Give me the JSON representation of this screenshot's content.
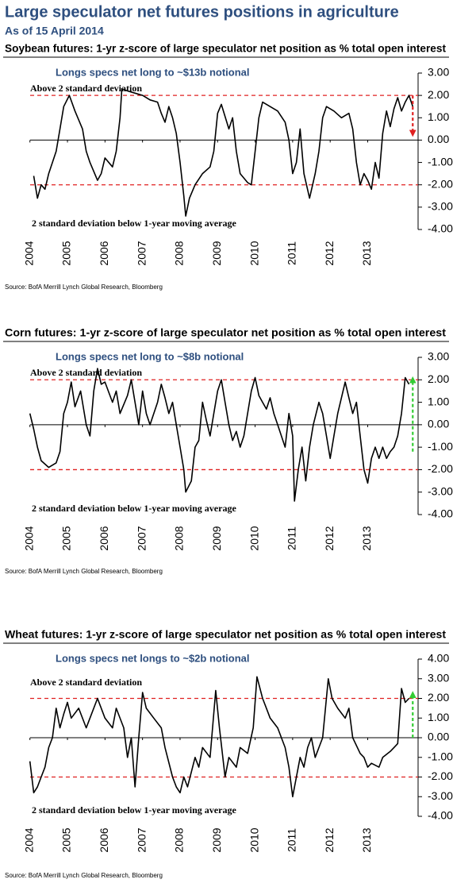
{
  "title": "Large speculator net futures positions in agriculture",
  "subtitle": "As of 15 April 2014",
  "chart_data": [
    {
      "type": "line",
      "title": "Soybean futures: 1-yr z-score of large speculator net position as % total open interest",
      "color": "#000000",
      "x": [
        2004.1,
        2004.2,
        2004.3,
        2004.4,
        2004.5,
        2004.7,
        2004.8,
        2004.9,
        2005.05,
        2005.2,
        2005.4,
        2005.5,
        2005.6,
        2005.8,
        2005.9,
        2006.0,
        2006.2,
        2006.3,
        2006.4,
        2006.45,
        2006.6,
        2006.8,
        2007.0,
        2007.2,
        2007.4,
        2007.5,
        2007.6,
        2007.7,
        2007.8,
        2007.9,
        2008.0,
        2008.1,
        2008.15,
        2008.25,
        2008.4,
        2008.6,
        2008.8,
        2008.9,
        2009.0,
        2009.1,
        2009.3,
        2009.4,
        2009.5,
        2009.6,
        2009.8,
        2009.9,
        2010.0,
        2010.1,
        2010.2,
        2010.4,
        2010.6,
        2010.8,
        2010.9,
        2011.0,
        2011.1,
        2011.2,
        2011.3,
        2011.45,
        2011.6,
        2011.7,
        2011.8,
        2011.9,
        2012.1,
        2012.3,
        2012.5,
        2012.6,
        2012.7,
        2012.8,
        2012.9,
        2013.0,
        2013.1,
        2013.2,
        2013.3,
        2013.4,
        2013.5,
        2013.6,
        2013.7,
        2013.8,
        2013.9,
        2014.0,
        2014.1,
        2014.2
      ],
      "values": [
        -1.6,
        -2.6,
        -2.0,
        -2.2,
        -1.5,
        -0.5,
        0.5,
        1.5,
        2.0,
        1.3,
        0.5,
        -0.5,
        -1.0,
        -1.8,
        -1.5,
        -0.8,
        -1.2,
        -0.5,
        1.0,
        2.3,
        2.2,
        2.1,
        2.0,
        1.8,
        1.7,
        1.2,
        0.8,
        1.5,
        1.0,
        0.3,
        -1.0,
        -2.5,
        -3.4,
        -2.6,
        -2.0,
        -1.5,
        -1.2,
        -0.5,
        1.2,
        1.6,
        0.5,
        1.0,
        -0.5,
        -1.5,
        -1.9,
        -2.0,
        -0.5,
        1.0,
        1.7,
        1.5,
        1.3,
        0.8,
        0.0,
        -1.5,
        -1.0,
        0.5,
        -1.5,
        -2.6,
        -1.5,
        -0.5,
        1.0,
        1.5,
        1.3,
        1.0,
        1.2,
        0.5,
        -1.0,
        -2.0,
        -1.5,
        -1.8,
        -2.2,
        -1.0,
        -1.7,
        0.3,
        1.3,
        0.6,
        1.4,
        1.9,
        1.3,
        1.7,
        2.0,
        1.5
      ],
      "xlim": [
        2003.9,
        2014.3
      ],
      "xticks": [
        2004,
        2005,
        2006,
        2007,
        2008,
        2009,
        2010,
        2011,
        2012,
        2013
      ],
      "ylim": [
        -4,
        3
      ],
      "yticks": [
        {
          "value": 3,
          "label": "3.00"
        },
        {
          "value": 2,
          "label": "2.00"
        },
        {
          "value": 1,
          "label": "1.00"
        },
        {
          "value": 0,
          "label": "0.00"
        },
        {
          "value": -1,
          "label": "-1.00"
        },
        {
          "value": -2,
          "label": "-2.00"
        },
        {
          "value": -3,
          "label": "-3.00"
        },
        {
          "value": -4,
          "label": "-4.00"
        }
      ],
      "reference_lines": [
        2,
        -2
      ],
      "reference_color": "#e02020",
      "arrow": {
        "x": 2014.2,
        "from": 2,
        "to": 0.3,
        "color": "#e02020"
      },
      "annotations": [
        "Longs specs net long to ~$13b notional",
        "Above 2 standard deviation",
        "2 standard deviation below 1-year moving average"
      ],
      "source": "Source: BofA Merrill Lynch Global Research, Bloomberg"
    },
    {
      "type": "line",
      "title": "Corn futures: 1-yr z-score of large speculator net position as % total open interest",
      "color": "#000000",
      "x": [
        2004.0,
        2004.1,
        2004.2,
        2004.3,
        2004.5,
        2004.7,
        2004.8,
        2004.9,
        2005.0,
        2005.1,
        2005.2,
        2005.35,
        2005.5,
        2005.6,
        2005.7,
        2005.8,
        2005.9,
        2006.0,
        2006.2,
        2006.3,
        2006.4,
        2006.6,
        2006.7,
        2006.8,
        2006.9,
        2007.0,
        2007.1,
        2007.2,
        2007.4,
        2007.5,
        2007.6,
        2007.7,
        2007.8,
        2007.9,
        2008.0,
        2008.1,
        2008.15,
        2008.3,
        2008.4,
        2008.5,
        2008.6,
        2008.7,
        2008.8,
        2008.9,
        2009.0,
        2009.1,
        2009.2,
        2009.3,
        2009.4,
        2009.5,
        2009.6,
        2009.7,
        2009.8,
        2009.9,
        2010.0,
        2010.1,
        2010.2,
        2010.3,
        2010.4,
        2010.5,
        2010.6,
        2010.7,
        2010.8,
        2010.9,
        2011.0,
        2011.05,
        2011.15,
        2011.25,
        2011.35,
        2011.45,
        2011.55,
        2011.7,
        2011.8,
        2011.9,
        2012.0,
        2012.1,
        2012.2,
        2012.4,
        2012.5,
        2012.6,
        2012.7,
        2012.8,
        2012.9,
        2013.0,
        2013.1,
        2013.2,
        2013.3,
        2013.4,
        2013.5,
        2013.6,
        2013.7,
        2013.8,
        2013.9,
        2014.0,
        2014.1
      ],
      "values": [
        0.5,
        -0.2,
        -1.0,
        -1.6,
        -1.9,
        -1.7,
        -1.2,
        0.5,
        1.0,
        1.9,
        0.8,
        1.5,
        0.0,
        -0.5,
        1.5,
        2.5,
        1.8,
        1.9,
        1.0,
        1.5,
        0.5,
        1.3,
        2.0,
        1.0,
        0.0,
        1.5,
        0.5,
        0.0,
        1.0,
        1.8,
        1.2,
        0.5,
        1.0,
        0.0,
        -1.0,
        -2.0,
        -3.0,
        -2.5,
        -1.0,
        -0.7,
        1.0,
        0.2,
        -0.5,
        0.5,
        1.5,
        2.0,
        1.0,
        0.0,
        -0.7,
        -0.3,
        -1.0,
        -0.5,
        0.5,
        1.5,
        2.1,
        1.3,
        1.0,
        0.7,
        1.2,
        0.5,
        0.0,
        -0.5,
        -1.0,
        0.5,
        -0.5,
        -3.4,
        -2.0,
        -1.0,
        -2.5,
        -1.0,
        0.0,
        1.0,
        0.5,
        -0.5,
        -1.5,
        -0.5,
        0.5,
        1.9,
        1.2,
        0.5,
        1.0,
        -0.5,
        -2.0,
        -2.6,
        -1.5,
        -1.0,
        -1.5,
        -1.0,
        -1.5,
        -1.2,
        -1.0,
        -0.5,
        0.5,
        2.1,
        1.8
      ],
      "xlim": [
        2003.9,
        2014.3
      ],
      "xticks": [
        2004,
        2005,
        2006,
        2007,
        2008,
        2009,
        2010,
        2011,
        2012,
        2013
      ],
      "ylim": [
        -4,
        3
      ],
      "yticks": [
        {
          "value": 3,
          "label": "3.00"
        },
        {
          "value": 2,
          "label": "2.00"
        },
        {
          "value": 1,
          "label": "1.00"
        },
        {
          "value": 0,
          "label": "0.00"
        },
        {
          "value": -1,
          "label": "-1.00"
        },
        {
          "value": -2,
          "label": "-2.00"
        },
        {
          "value": -3,
          "label": "-3.00"
        },
        {
          "value": -4,
          "label": "-4.00"
        }
      ],
      "reference_lines": [
        2,
        -2
      ],
      "reference_color": "#e02020",
      "arrow": {
        "x": 2014.2,
        "from": -1.2,
        "to": 2,
        "color": "#33cc33"
      },
      "annotations": [
        "Longs specs net long to ~$8b notional",
        "Above 2 standard deviation",
        "2 standard deviation below 1-year moving average"
      ],
      "source": "Source: BofA Merrill Lynch Global Research, Bloomberg"
    },
    {
      "type": "line",
      "title": "Wheat futures: 1-yr z-score of large speculator net position as % total open interest",
      "color": "#000000",
      "x": [
        2004.0,
        2004.1,
        2004.2,
        2004.3,
        2004.4,
        2004.5,
        2004.6,
        2004.7,
        2004.8,
        2004.9,
        2005.0,
        2005.1,
        2005.3,
        2005.5,
        2005.6,
        2005.8,
        2005.9,
        2006.0,
        2006.2,
        2006.3,
        2006.5,
        2006.6,
        2006.7,
        2006.8,
        2006.9,
        2007.0,
        2007.1,
        2007.3,
        2007.5,
        2007.6,
        2007.8,
        2007.9,
        2008.0,
        2008.1,
        2008.2,
        2008.4,
        2008.5,
        2008.6,
        2008.8,
        2008.95,
        2009.05,
        2009.2,
        2009.3,
        2009.5,
        2009.6,
        2009.8,
        2009.95,
        2010.05,
        2010.2,
        2010.3,
        2010.4,
        2010.6,
        2010.8,
        2010.9,
        2011.0,
        2011.1,
        2011.2,
        2011.3,
        2011.4,
        2011.5,
        2011.6,
        2011.7,
        2011.8,
        2011.95,
        2012.05,
        2012.2,
        2012.4,
        2012.5,
        2012.6,
        2012.8,
        2012.9,
        2013.0,
        2013.1,
        2013.3,
        2013.4,
        2013.6,
        2013.7,
        2013.8,
        2013.9,
        2014.0,
        2014.1
      ],
      "values": [
        -1.2,
        -2.8,
        -2.5,
        -2.0,
        -1.5,
        -0.5,
        0.0,
        1.5,
        0.5,
        1.2,
        1.8,
        1.0,
        1.5,
        0.5,
        1.0,
        2.0,
        1.5,
        1.0,
        0.5,
        1.5,
        0.5,
        -1.0,
        0.0,
        -2.5,
        0.0,
        2.3,
        1.5,
        1.0,
        0.5,
        -0.5,
        -2.0,
        -2.5,
        -2.8,
        -2.0,
        -2.5,
        -1.0,
        -1.5,
        -0.5,
        -1.0,
        2.4,
        0.5,
        -2.0,
        -1.0,
        -1.5,
        -0.5,
        -0.8,
        0.5,
        3.1,
        2.0,
        1.5,
        1.0,
        0.5,
        -0.5,
        -1.5,
        -3.0,
        -2.0,
        -1.0,
        -1.5,
        -0.5,
        0.0,
        -1.0,
        -0.5,
        0.0,
        3.0,
        2.0,
        1.5,
        1.0,
        1.5,
        0.0,
        -0.8,
        -1.0,
        -1.5,
        -1.3,
        -1.5,
        -1.0,
        -0.7,
        -0.5,
        -0.3,
        2.5,
        1.8,
        2.0
      ],
      "xlim": [
        2003.9,
        2014.3
      ],
      "xticks": [
        2004,
        2005,
        2006,
        2007,
        2008,
        2009,
        2010,
        2011,
        2012,
        2013
      ],
      "ylim": [
        -4,
        4
      ],
      "yticks": [
        {
          "value": 4,
          "label": "4.00"
        },
        {
          "value": 3,
          "label": "3.00"
        },
        {
          "value": 2,
          "label": "2.00"
        },
        {
          "value": 1,
          "label": "1.00"
        },
        {
          "value": 0,
          "label": "0.00"
        },
        {
          "value": -1,
          "label": "-1.00"
        },
        {
          "value": -2,
          "label": "-2.00"
        },
        {
          "value": -3,
          "label": "-3.00"
        },
        {
          "value": -4,
          "label": "-4.00"
        }
      ],
      "reference_lines": [
        2,
        -2
      ],
      "reference_color": "#e02020",
      "arrow": {
        "x": 2014.2,
        "from": 0,
        "to": 2.2,
        "color": "#33cc33"
      },
      "annotations": [
        "Longs specs net longs to ~$2b notional",
        "Above 2 standard deviation",
        "2 standard deviation below 1-year moving average"
      ],
      "source": "Source: BofA Merrill Lynch Global Research, Bloomberg"
    }
  ]
}
